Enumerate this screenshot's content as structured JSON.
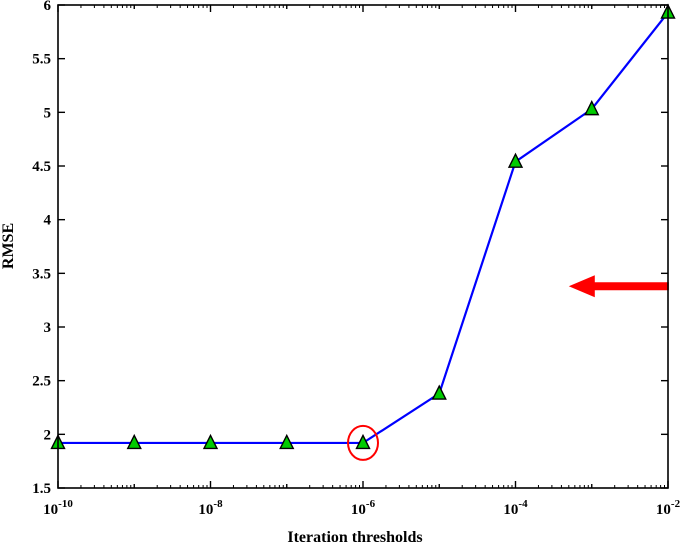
{
  "chart_data": {
    "type": "line",
    "xscale": "log",
    "xlabel": "Iteration thresholds",
    "ylabel": "RMSE",
    "xlim": [
      1e-10,
      0.01
    ],
    "ylim": [
      1.5,
      6
    ],
    "x_tick_labels": [
      {
        "value": 1e-10,
        "base": "10",
        "exp": "-10"
      },
      {
        "value": 1e-08,
        "base": "10",
        "exp": "-8"
      },
      {
        "value": 1e-06,
        "base": "10",
        "exp": "-6"
      },
      {
        "value": 0.0001,
        "base": "10",
        "exp": "-4"
      },
      {
        "value": 0.01,
        "base": "10",
        "exp": "-2"
      }
    ],
    "y_ticks": [
      1.5,
      2,
      2.5,
      3,
      3.5,
      4,
      4.5,
      5,
      5.5,
      6
    ],
    "y_tick_labels": [
      "1.5",
      "2",
      "2.5",
      "3",
      "3.5",
      "4",
      "4.5",
      "5",
      "5.5",
      "6"
    ],
    "grid": false,
    "series": [
      {
        "x": [
          1e-10,
          1e-09,
          1e-08,
          1e-07,
          1e-06,
          1e-05,
          0.0001,
          0.001,
          0.01
        ],
        "y": [
          1.92,
          1.92,
          1.92,
          1.92,
          1.92,
          2.38,
          4.54,
          5.03,
          5.93
        ],
        "line_color": "#0000ff",
        "marker": "triangle",
        "marker_color": "#00cc00"
      }
    ],
    "annotations": [
      {
        "type": "circle",
        "x": 1e-06,
        "y": 1.92,
        "color": "#ff0000"
      },
      {
        "type": "arrow",
        "direction": "left",
        "x": 0.0005,
        "y": 3.38,
        "color": "#ff0000"
      }
    ]
  }
}
